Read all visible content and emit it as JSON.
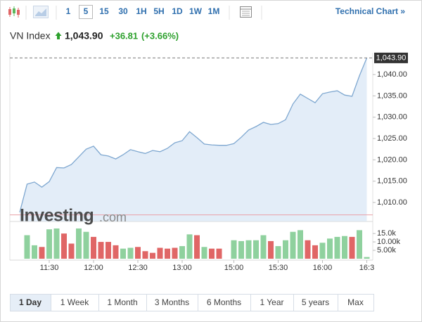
{
  "toolbar": {
    "intervals": [
      "1",
      "5",
      "15",
      "30",
      "1H",
      "5H",
      "1D",
      "1W",
      "1M"
    ],
    "selected": 1,
    "technical_chart": "Technical Chart »"
  },
  "header": {
    "name": "VN Index",
    "price": "1,043.90",
    "change": "+36.81",
    "change_pct": "(+3.66%)"
  },
  "chart_data": [
    {
      "type": "area",
      "color": "#7ea7d0",
      "fill": "#e3edf8",
      "categories": [
        null,
        null,
        null,
        null,
        "11:30",
        null,
        null,
        null,
        null,
        null,
        "12:00",
        null,
        null,
        null,
        null,
        null,
        "12:30",
        null,
        null,
        null,
        null,
        null,
        "13:00",
        null,
        null,
        null,
        null,
        null,
        null,
        "15:00",
        null,
        null,
        null,
        null,
        null,
        "15:30",
        null,
        null,
        null,
        null,
        null,
        "16:00",
        null,
        null,
        null,
        null,
        null,
        "16:3"
      ],
      "values": [
        1007.7,
        1014.3,
        1014.8,
        1013.6,
        1014.9,
        1018.2,
        1018.1,
        1018.9,
        1020.7,
        1022.5,
        1023.2,
        1021.2,
        1020.9,
        1020.2,
        1021.2,
        1022.4,
        1021.9,
        1021.5,
        1022.2,
        1021.9,
        1022.7,
        1024.0,
        1024.5,
        1026.6,
        1025.2,
        1023.7,
        1023.5,
        1023.4,
        1023.4,
        1023.8,
        1025.3,
        1027.0,
        1027.8,
        1028.8,
        1028.3,
        1028.5,
        1029.4,
        1033.1,
        1035.4,
        1034.4,
        1033.4,
        1035.5,
        1035.9,
        1036.2,
        1035.2,
        1034.9,
        1039.7,
        1043.9
      ],
      "last_value_label": "1,043.90",
      "reference_line": 1007.09,
      "ylim": [
        1005.6,
        1045.2
      ],
      "yticks": [
        {
          "value": 1010,
          "label": "1,010.00"
        },
        {
          "value": 1015,
          "label": "1,015.00"
        },
        {
          "value": 1020,
          "label": "1,020.00"
        },
        {
          "value": 1025,
          "label": "1,025.00"
        },
        {
          "value": 1030,
          "label": "1,030.00"
        },
        {
          "value": 1035,
          "label": "1,035.00"
        },
        {
          "value": 1040,
          "label": "1,040.00"
        }
      ]
    },
    {
      "type": "bar",
      "values": [
        null,
        14000,
        8000,
        7000,
        17500,
        18000,
        15000,
        9000,
        18000,
        16000,
        13000,
        10000,
        10000,
        8000,
        6000,
        6500,
        7000,
        4500,
        3500,
        6500,
        6000,
        6500,
        7500,
        14500,
        14000,
        7000,
        6000,
        6000,
        null,
        11000,
        10500,
        11000,
        11000,
        14000,
        10500,
        7500,
        11000,
        16000,
        17000,
        11000,
        8000,
        9500,
        12000,
        13000,
        13500,
        13000,
        17000,
        1000
      ],
      "colors": [
        null,
        "#8fd19e",
        "#8fd19e",
        "#e06666",
        "#8fd19e",
        "#8fd19e",
        "#e06666",
        "#e06666",
        "#8fd19e",
        "#8fd19e",
        "#e06666",
        "#e06666",
        "#e06666",
        "#e06666",
        "#8fd19e",
        "#8fd19e",
        "#e06666",
        "#e06666",
        "#e06666",
        "#e06666",
        "#e06666",
        "#e06666",
        "#8fd19e",
        "#8fd19e",
        "#e06666",
        "#8fd19e",
        "#e06666",
        "#e06666",
        null,
        "#8fd19e",
        "#8fd19e",
        "#8fd19e",
        "#8fd19e",
        "#8fd19e",
        "#e06666",
        "#8fd19e",
        "#8fd19e",
        "#8fd19e",
        "#8fd19e",
        "#e06666",
        "#e06666",
        "#8fd19e",
        "#8fd19e",
        "#8fd19e",
        "#8fd19e",
        "#e06666",
        "#8fd19e",
        "#8fd19e"
      ],
      "ylim": [
        0,
        20500
      ],
      "yticks": [
        {
          "value": 5000,
          "label": "5.00k"
        },
        {
          "value": 10000,
          "label": "10.00k"
        },
        {
          "value": 15000,
          "label": "15.0k"
        }
      ]
    }
  ],
  "watermark": {
    "brand": "Investing",
    "suffix": ".com"
  },
  "ranges": {
    "items": [
      "1 Day",
      "1 Week",
      "1 Month",
      "3 Months",
      "6 Months",
      "1 Year",
      "5 years",
      "Max"
    ],
    "selected": 0
  }
}
